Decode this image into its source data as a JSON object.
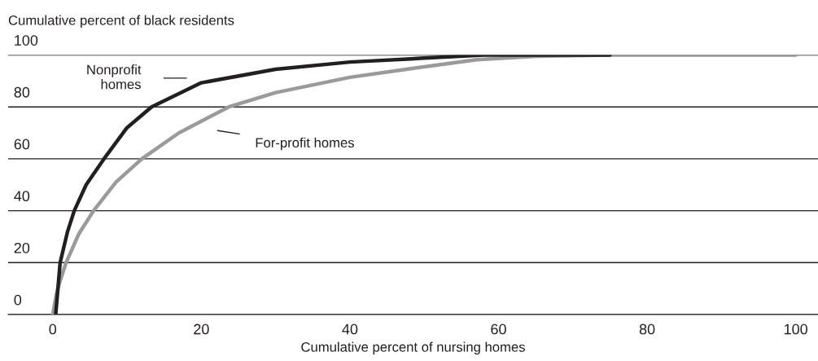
{
  "chart_data": {
    "type": "line",
    "xlabel": "Cumulative percent of nursing homes",
    "ylabel": "Cumulative percent of black residents",
    "xlim": [
      -6,
      103
    ],
    "xticks": [
      0,
      20,
      40,
      60,
      80,
      100
    ],
    "ylim": [
      0,
      100
    ],
    "yticks": [
      0,
      20,
      40,
      60,
      80,
      100
    ],
    "grid": "y",
    "marker": "none",
    "line_style": "solid",
    "series": [
      {
        "color": "#9a9a9a",
        "x": [
          0,
          0.5,
          1.0,
          1.8,
          3.5,
          5.5,
          8.5,
          12,
          17,
          23.7,
          30,
          40,
          47.6,
          57.1,
          65,
          75,
          100
        ],
        "values": [
          0,
          8,
          13,
          20,
          31,
          40,
          51,
          60,
          70,
          80,
          85.5,
          91.4,
          94.5,
          98.2,
          99.5,
          100,
          100
        ]
      },
      {
        "color": "#231f20",
        "x": [
          0.4,
          0.7,
          1.0,
          2.0,
          2.9,
          4.5,
          6.9,
          10,
          13.3,
          20,
          30,
          40,
          50,
          58,
          75
        ],
        "values": [
          0,
          10,
          20,
          32,
          40,
          50,
          60,
          72,
          80,
          89.3,
          94.5,
          97.3,
          98.8,
          100,
          100
        ]
      }
    ],
    "annotations": [
      "Nonprofit\nhomes",
      "For-profit homes"
    ]
  }
}
